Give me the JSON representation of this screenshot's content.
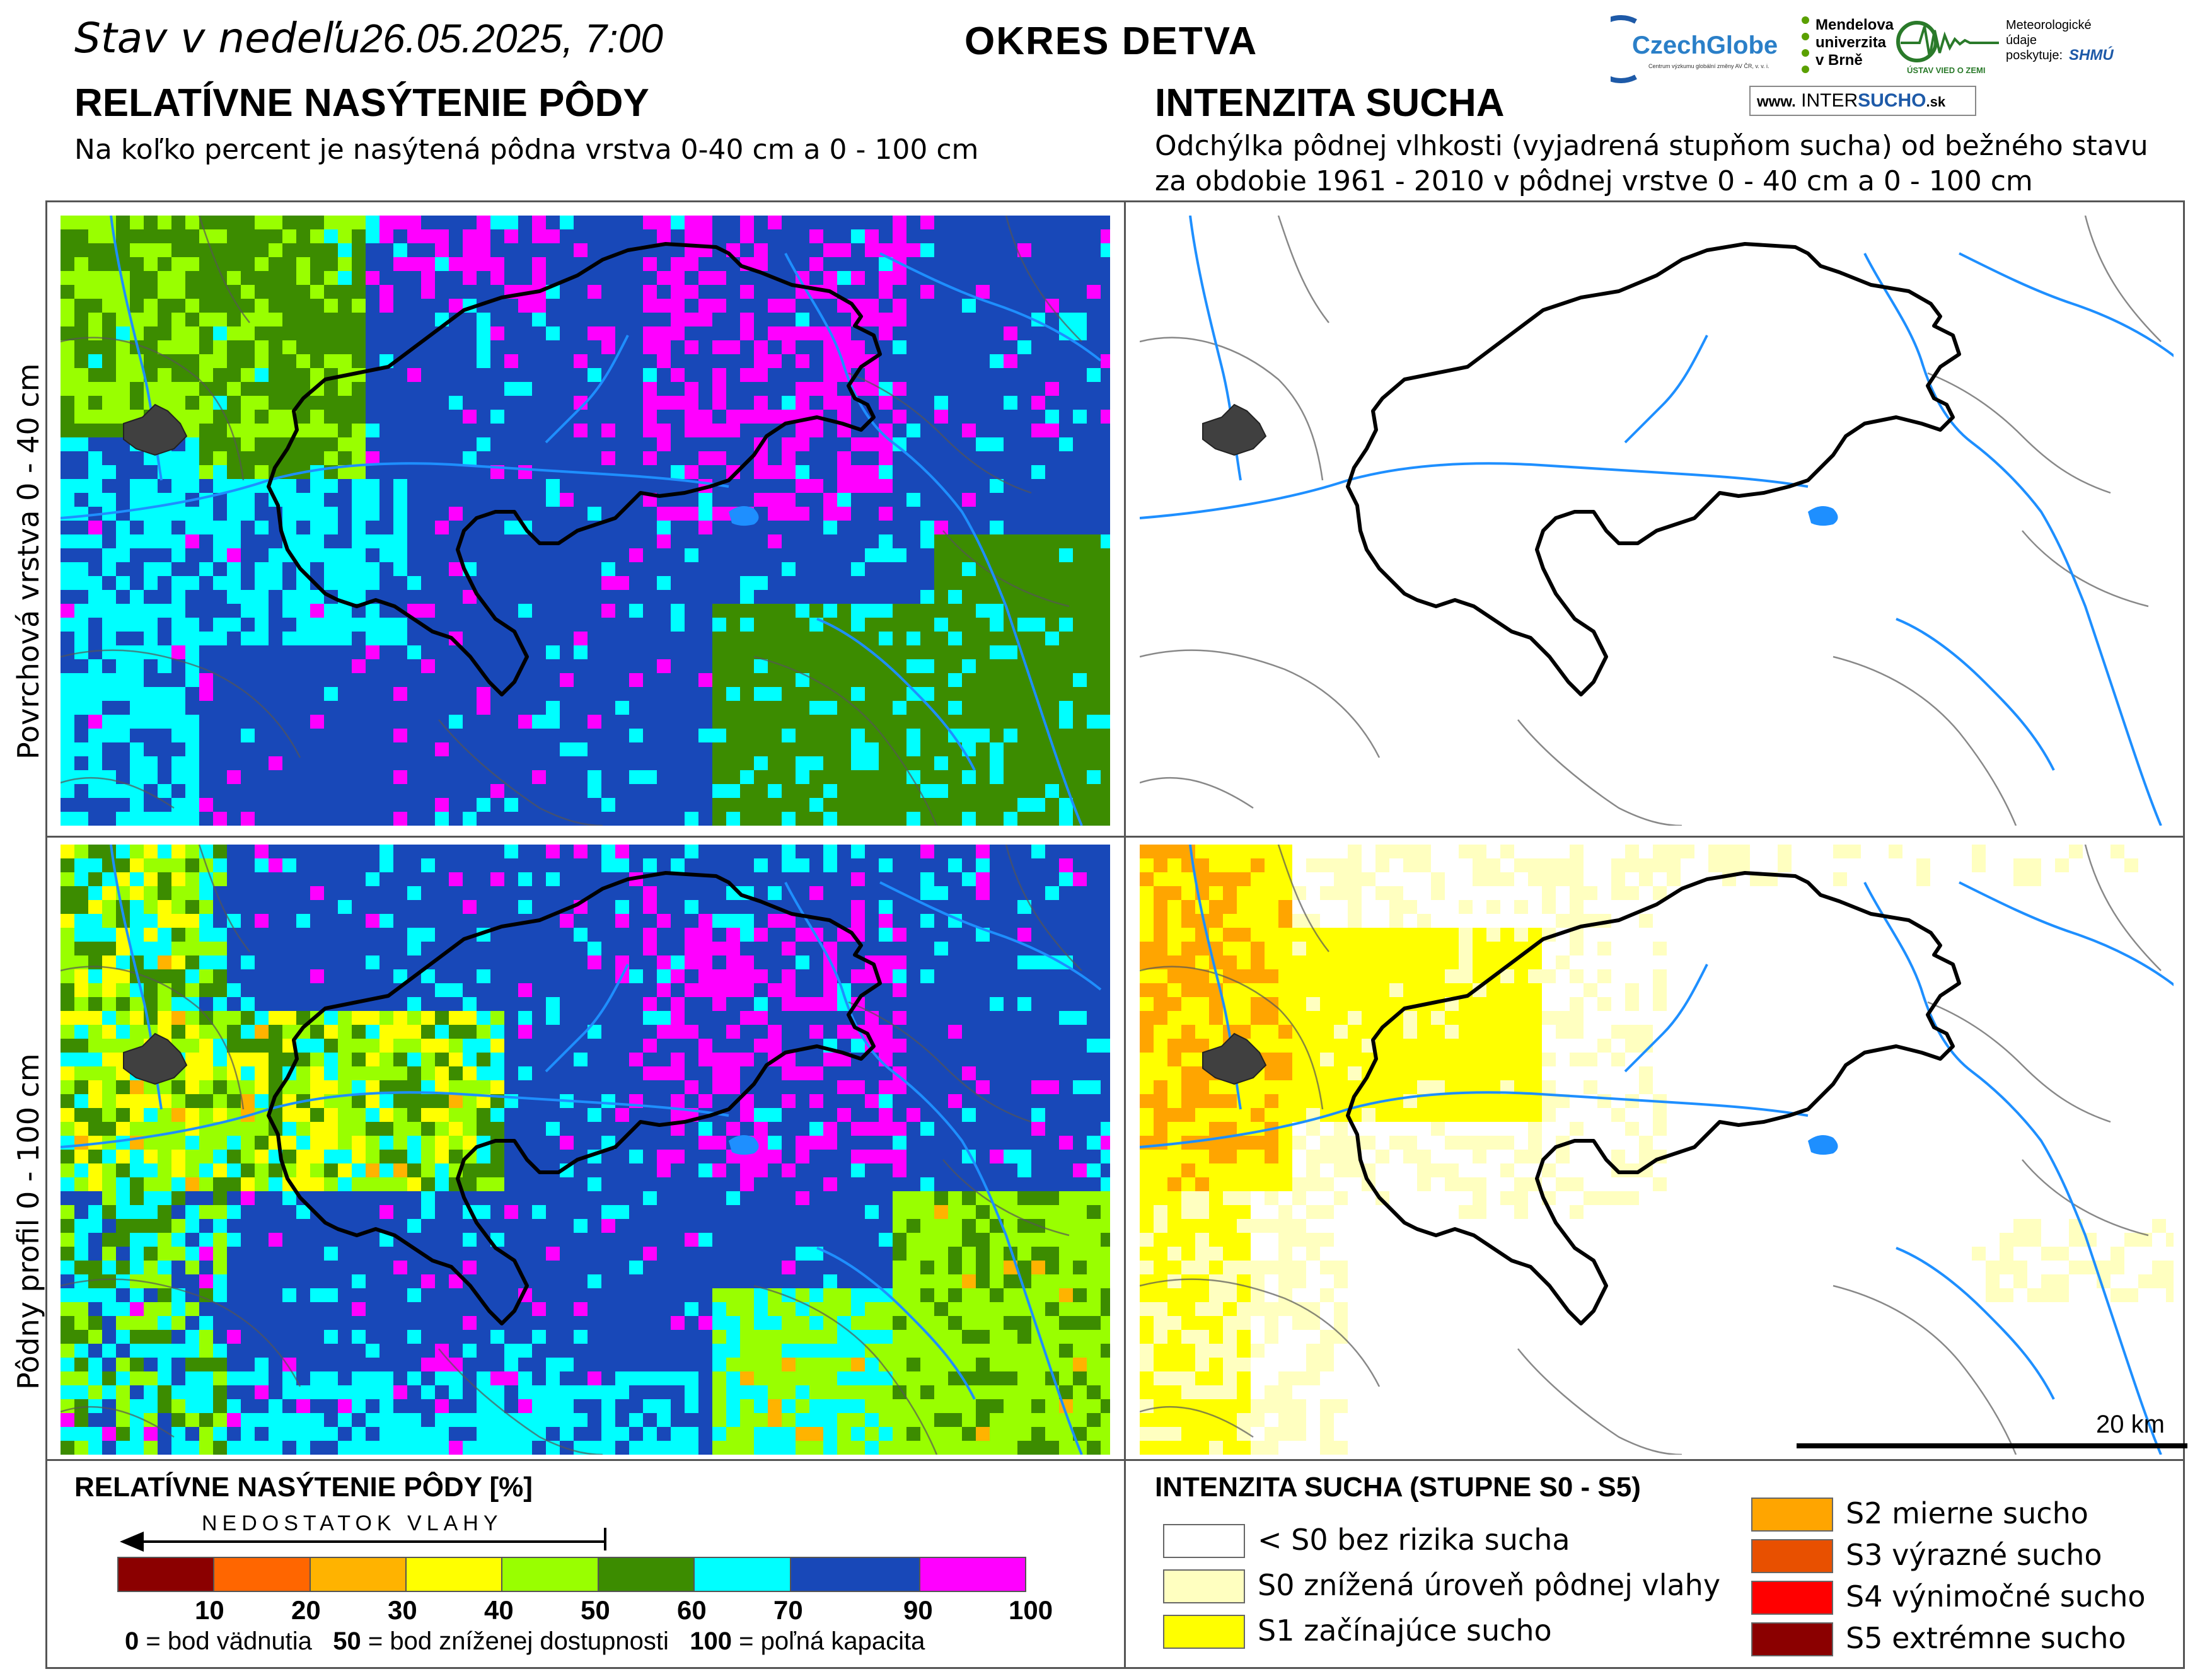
{
  "header": {
    "status_label": "Stav v nedeľu",
    "datetime": "26.05.2025, 7:00",
    "district": "OKRES  DETVA"
  },
  "left": {
    "title": "RELATÍVNE NASÝTENIE PÔDY",
    "subtitle": "Na koľko percent je nasýtená pôdna vrstva 0-40 cm a 0 - 100 cm"
  },
  "right": {
    "title": "INTENZITA SUCHA",
    "subtitle_line1": "Odchýlka pôdnej vlhkosti (vyjadrená stupňom sucha) od bežného stavu",
    "subtitle_line2": "za obdobie 1961 - 2010 v pôdnej vrstve 0 - 40 cm a 0 - 100 cm"
  },
  "rows": {
    "top": "Povrchová vrstva 0 - 40 cm",
    "bottom": "Pôdny profil 0 - 100 cm"
  },
  "logos": {
    "czechglobe": "CzechGlobe",
    "czechglobe_sub": "Centrum výzkumu globální změny AV ČR, v. v. i.",
    "mendel_1": "Mendelova",
    "mendel_2": "univerzita",
    "mendel_3": "v Brně",
    "ustav": "ÚSTAV VIED O ZEMI",
    "meteo_1": "Meteorologické",
    "meteo_2": "údaje",
    "meteo_3": "poskytuje:",
    "shmu": "SHMÚ",
    "web_prefix": "www.",
    "web_inter": "INTER",
    "web_sucho": "SUCHO",
    "web_suffix": ".sk"
  },
  "scale_bar": "20 km",
  "legend_left": {
    "title": "RELATÍVNE NASÝTENIE PÔDY [%]",
    "arrow_label": "NEDOSTATOK VLAHY",
    "colors": [
      "#8b0000",
      "#ff6600",
      "#ffb300",
      "#ffff00",
      "#99ff00",
      "#3c8c00",
      "#00ffff",
      "#1848b8",
      "#ff00ff"
    ],
    "ticks": [
      "10",
      "20",
      "30",
      "40",
      "50",
      "60",
      "70",
      "90",
      "100"
    ],
    "note_0_num": "0",
    "note_0_txt": "= bod vädnutia",
    "note_50_num": "50",
    "note_50_txt": "= bod zníženej dostupnosti",
    "note_100_num": "100",
    "note_100_txt": "= poľná kapacita"
  },
  "legend_right": {
    "title": "INTENZITA SUCHA (STUPNE S0 - S5)",
    "items_left": [
      {
        "color": "#ffffff",
        "label": "< S0 bez rizika sucha"
      },
      {
        "color": "#ffffc0",
        "label": "S0 znížená úroveň pôdnej vlahy"
      },
      {
        "color": "#ffff00",
        "label": "S1 začínajúce sucho"
      }
    ],
    "items_right": [
      {
        "color": "#ffa500",
        "label": "S2 mierne sucho"
      },
      {
        "color": "#e85000",
        "label": "S3 výrazné sucho"
      },
      {
        "color": "#ff0000",
        "label": "S4 výnimočné sucho"
      },
      {
        "color": "#8b0000",
        "label": "S5 extrémne sucho"
      }
    ]
  }
}
